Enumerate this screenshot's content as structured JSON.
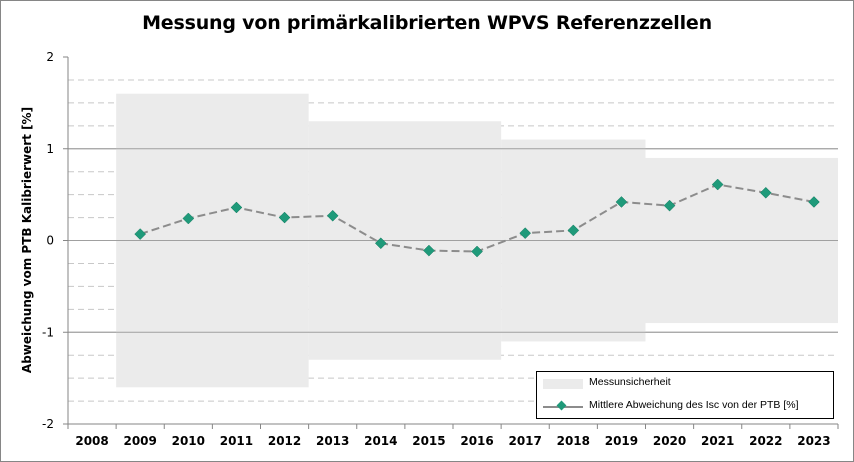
{
  "chart_data": {
    "type": "line",
    "title": "Messung von primärkalibrierten WPVS Referenzzellen",
    "ylabel": "Abweichung vom PTB Kalibrierwert [%]",
    "xlabel": "",
    "categories": [
      "2008",
      "2009",
      "2010",
      "2011",
      "2012",
      "2013",
      "2014",
      "2015",
      "2016",
      "2017",
      "2018",
      "2019",
      "2020",
      "2021",
      "2022",
      "2023"
    ],
    "ylim": [
      -2,
      2
    ],
    "yticks": [
      2,
      1,
      0,
      -1,
      -2
    ],
    "grid": "dashed-horizontal",
    "series": [
      {
        "name": "Mittlere Abweichung des Isc von der PTB [%]",
        "kind": "line-diamond",
        "color": "#1f9a7a",
        "line_color": "#8c8c8c",
        "values": [
          null,
          0.07,
          0.24,
          0.36,
          0.25,
          0.27,
          -0.03,
          -0.11,
          -0.12,
          0.08,
          0.11,
          0.42,
          0.38,
          0.61,
          0.52,
          0.42
        ]
      }
    ],
    "uncertainty": {
      "name": "Messunsicherheit",
      "color": "#ebebeb",
      "bands": [
        {
          "from": "2009",
          "to": "2012",
          "value": 1.6
        },
        {
          "from": "2013",
          "to": "2016",
          "value": 1.3
        },
        {
          "from": "2017",
          "to": "2019",
          "value": 1.1
        },
        {
          "from": "2020",
          "to": "2023",
          "value": 0.9
        }
      ]
    },
    "legend_position": "bottom-right"
  }
}
